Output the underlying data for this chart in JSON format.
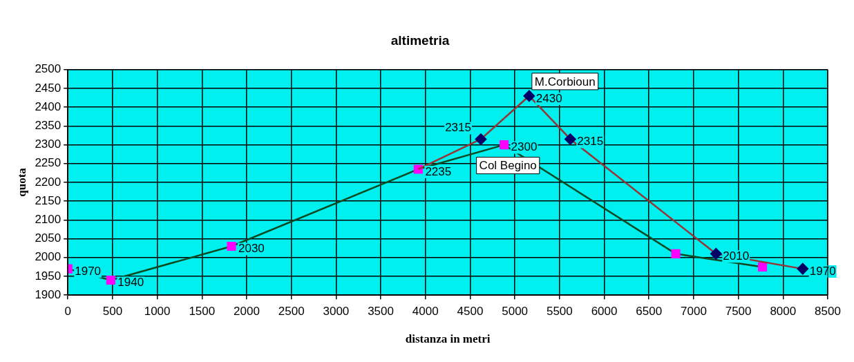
{
  "chart_data": {
    "type": "line",
    "title": "altimetria",
    "xlabel": "distanza in metri",
    "ylabel": "quota",
    "xlim": [
      0,
      8500
    ],
    "xticks": [
      0,
      500,
      1000,
      1500,
      2000,
      2500,
      3000,
      3500,
      4000,
      4500,
      5000,
      5500,
      6000,
      6500,
      7000,
      7500,
      8000,
      8500
    ],
    "ylim": [
      1900,
      2500
    ],
    "yticks": [
      1900,
      1950,
      2000,
      2050,
      2100,
      2150,
      2200,
      2250,
      2300,
      2350,
      2400,
      2450,
      2500
    ],
    "grid": true,
    "legend": false,
    "line_style": "solid",
    "series": [
      {
        "color": "#993333",
        "marker": "diamond",
        "colors": [
          null,
          "#000066",
          "#000066",
          "#000066",
          "#000066",
          "#000066"
        ],
        "x": [
          3920,
          4620,
          5160,
          5620,
          7250,
          8220
        ],
        "values": [
          2235,
          2315,
          2430,
          2315,
          2010,
          1970
        ],
        "value_labels": [
          null,
          "2315",
          "2430",
          "2315",
          "2010",
          "1970"
        ]
      },
      {
        "color": "#0b4a22",
        "marker": "square",
        "colors": [
          "#ff00ff",
          "#ff00ff",
          "#ff00ff",
          "#ff00ff",
          "#ff00ff",
          "#ff00ff",
          "#ff00ff"
        ],
        "x": [
          0,
          480,
          1830,
          3920,
          4880,
          6800,
          7770
        ],
        "values": [
          1970,
          1940,
          2030,
          2235,
          2300,
          2010,
          1975
        ],
        "value_labels": [
          "1970",
          "1940",
          "2030",
          "2235",
          "2300",
          null,
          null
        ]
      }
    ],
    "annotations": [
      {
        "text": "M.Corbioun",
        "x": 5160,
        "y": 2430
      },
      {
        "text": "Col Begino",
        "x": 4880,
        "y": 2300
      }
    ]
  }
}
